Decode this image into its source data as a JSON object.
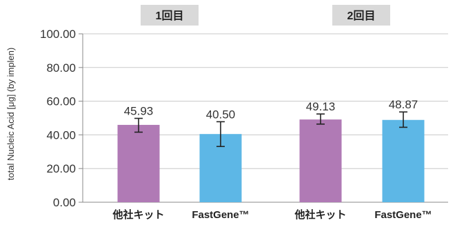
{
  "chart_data": {
    "type": "bar",
    "ylabel": "total Nucleic Acid [μg] (by implen)",
    "ylim": [
      0,
      100
    ],
    "yticks": [
      "0.00",
      "20.00",
      "40.00",
      "60.00",
      "80.00",
      "100.00"
    ],
    "grid": true,
    "groups": [
      "1回目",
      "2回目"
    ],
    "categories": [
      "他社キット",
      "FastGene™",
      "他社キット",
      "FastGene™"
    ],
    "values": [
      45.93,
      40.5,
      49.13,
      48.87
    ],
    "value_labels": [
      "45.93",
      "40.50",
      "49.13",
      "48.87"
    ],
    "error_low": [
      41.6,
      33.1,
      46.4,
      44.5
    ],
    "error_high": [
      49.8,
      47.8,
      52.4,
      53.6
    ],
    "colors": {
      "other_kit": "#b07ab5",
      "fastgene": "#5db7e6",
      "group_box": "#d9d9d9",
      "grid": "#c8c8c8",
      "axis": "#888888"
    }
  }
}
